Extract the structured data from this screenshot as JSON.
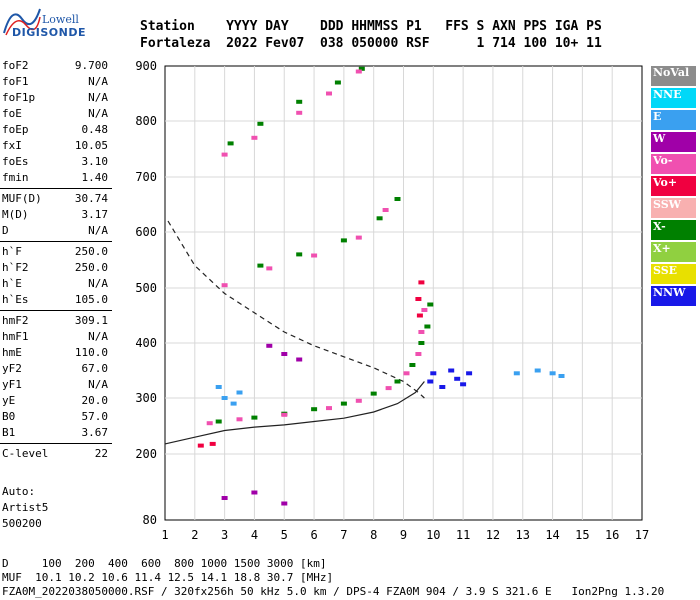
{
  "logo": {
    "line1": "Lowell",
    "line2": "DIGISONDE"
  },
  "header": {
    "line1": "Station    YYYY DAY    DDD HHMMSS P1   FFS S AXN PPS IGA PS",
    "line2": "Fortaleza  2022 Fev07  038 050000 RSF      1 714 100 10+ 11"
  },
  "params": [
    [
      {
        "k": "foF2",
        "v": "9.700"
      },
      {
        "k": "foF1",
        "v": "N/A"
      },
      {
        "k": "foF1p",
        "v": "N/A"
      },
      {
        "k": "foE",
        "v": "N/A"
      },
      {
        "k": "foEp",
        "v": "0.48"
      },
      {
        "k": "fxI",
        "v": "10.05"
      },
      {
        "k": "foEs",
        "v": "3.10"
      },
      {
        "k": "fmin",
        "v": "1.40"
      }
    ],
    [
      {
        "k": "MUF(D)",
        "v": "30.74"
      },
      {
        "k": "M(D)",
        "v": "3.17"
      },
      {
        "k": "D",
        "v": "N/A"
      }
    ],
    [
      {
        "k": "h`F",
        "v": "250.0"
      },
      {
        "k": "h`F2",
        "v": "250.0"
      },
      {
        "k": "h`E",
        "v": "N/A"
      },
      {
        "k": "h`Es",
        "v": "105.0"
      }
    ],
    [
      {
        "k": "hmF2",
        "v": "309.1"
      },
      {
        "k": "hmF1",
        "v": "N/A"
      },
      {
        "k": "hmE",
        "v": "110.0"
      },
      {
        "k": "yF2",
        "v": "67.0"
      },
      {
        "k": "yF1",
        "v": "N/A"
      },
      {
        "k": "yE",
        "v": "20.0"
      },
      {
        "k": "B0",
        "v": "57.0"
      },
      {
        "k": "B1",
        "v": "3.67"
      }
    ],
    [
      {
        "k": "C-level",
        "v": "22"
      }
    ]
  ],
  "auto": {
    "line1": "Auto:",
    "line2": "Artist5",
    "line3": "500200"
  },
  "legend": [
    {
      "label": "NoVal",
      "color": "#8c8c8c"
    },
    {
      "label": "NNE",
      "color": "#00d8f8"
    },
    {
      "label": "E",
      "color": "#3aa0f0"
    },
    {
      "label": "W",
      "color": "#a000a8"
    },
    {
      "label": "Vo-",
      "color": "#f050b0"
    },
    {
      "label": "Vo+",
      "color": "#f00040"
    },
    {
      "label": "SSW",
      "color": "#f8b0b0"
    },
    {
      "label": "X-",
      "color": "#008000"
    },
    {
      "label": "X+",
      "color": "#90d040"
    },
    {
      "label": "SSE",
      "color": "#e8e000"
    },
    {
      "label": "NNW",
      "color": "#1818e8"
    }
  ],
  "footer": {
    "line1": "D     100  200  400  600  800 1000 1500 3000 [km]",
    "line2": "MUF  10.1 10.2 10.6 11.4 12.5 14.1 18.8 30.7 [MHz]",
    "line3": "FZA0M_2022038050000.RSF / 320fx256h 50 kHz 5.0 km / DPS-4 FZA0M 904 / 3.9 S 321.6 E   Ion2Png 1.3.20"
  },
  "chart_data": {
    "type": "scatter",
    "title": "",
    "xlabel": "",
    "ylabel": "",
    "xlim": [
      1,
      17
    ],
    "ylim": [
      80,
      900
    ],
    "x_ticks": [
      1,
      2,
      3,
      4,
      5,
      6,
      7,
      8,
      9,
      10,
      11,
      12,
      13,
      14,
      15,
      16,
      17
    ],
    "y_ticks": [
      80,
      200,
      300,
      400,
      500,
      600,
      700,
      800,
      900
    ],
    "grid": true,
    "series": [
      {
        "name": "X-",
        "color": "#008000",
        "points": [
          [
            2.8,
            258
          ],
          [
            4,
            265
          ],
          [
            5,
            272
          ],
          [
            6,
            280
          ],
          [
            7,
            290
          ],
          [
            8,
            308
          ],
          [
            8.8,
            330
          ],
          [
            9.3,
            360
          ],
          [
            9.6,
            400
          ],
          [
            9.8,
            430
          ],
          [
            9.9,
            470
          ],
          [
            4.2,
            540
          ],
          [
            5.5,
            560
          ],
          [
            7,
            585
          ],
          [
            8.2,
            625
          ],
          [
            8.8,
            660
          ],
          [
            3.2,
            760
          ],
          [
            4.2,
            795
          ],
          [
            5.5,
            835
          ],
          [
            6.8,
            870
          ],
          [
            7.6,
            895
          ]
        ]
      },
      {
        "name": "Vo-",
        "color": "#f050b0",
        "points": [
          [
            2.5,
            255
          ],
          [
            3.5,
            262
          ],
          [
            5,
            270
          ],
          [
            6.5,
            282
          ],
          [
            7.5,
            295
          ],
          [
            8.5,
            318
          ],
          [
            9.1,
            345
          ],
          [
            9.5,
            380
          ],
          [
            9.6,
            420
          ],
          [
            9.7,
            460
          ],
          [
            3,
            505
          ],
          [
            4.5,
            535
          ],
          [
            6,
            558
          ],
          [
            7.5,
            590
          ],
          [
            8.4,
            640
          ],
          [
            3,
            740
          ],
          [
            4,
            770
          ],
          [
            5.5,
            815
          ],
          [
            6.5,
            850
          ],
          [
            7.5,
            890
          ]
        ]
      },
      {
        "name": "NNW",
        "color": "#1818e8",
        "points": [
          [
            9.9,
            330
          ],
          [
            10,
            345
          ],
          [
            10.3,
            320
          ],
          [
            10.6,
            350
          ],
          [
            10.8,
            335
          ],
          [
            11,
            325
          ],
          [
            11.2,
            345
          ]
        ]
      },
      {
        "name": "E",
        "color": "#3aa0f0",
        "points": [
          [
            3,
            300
          ],
          [
            3.3,
            290
          ],
          [
            2.8,
            320
          ],
          [
            3.5,
            310
          ],
          [
            12.8,
            345
          ],
          [
            13.5,
            350
          ],
          [
            14,
            345
          ],
          [
            14.3,
            340
          ]
        ]
      },
      {
        "name": "W",
        "color": "#a000a8",
        "points": [
          [
            3,
            120
          ],
          [
            4,
            130
          ],
          [
            5,
            110
          ],
          [
            4.5,
            395
          ],
          [
            5,
            380
          ],
          [
            5.5,
            370
          ]
        ]
      },
      {
        "name": "Vo+",
        "color": "#f00040",
        "points": [
          [
            9.5,
            480
          ],
          [
            9.6,
            510
          ],
          [
            9.55,
            450
          ],
          [
            2.2,
            215
          ],
          [
            2.6,
            218
          ]
        ]
      }
    ],
    "curves": [
      {
        "name": "",
        "style": "solid",
        "points": [
          [
            1,
            218
          ],
          [
            2,
            230
          ],
          [
            3,
            242
          ],
          [
            4,
            248
          ],
          [
            5,
            252
          ],
          [
            6,
            258
          ],
          [
            7,
            264
          ],
          [
            8,
            275
          ],
          [
            8.8,
            290
          ],
          [
            9.4,
            310
          ],
          [
            9.7,
            330
          ]
        ]
      },
      {
        "name": "",
        "style": "dashed",
        "points": [
          [
            1.1,
            620
          ],
          [
            2,
            540
          ],
          [
            3,
            490
          ],
          [
            4,
            455
          ],
          [
            5,
            420
          ],
          [
            6,
            395
          ],
          [
            7,
            375
          ],
          [
            8,
            355
          ],
          [
            9,
            330
          ],
          [
            9.5,
            310
          ],
          [
            9.7,
            300
          ]
        ]
      }
    ]
  }
}
